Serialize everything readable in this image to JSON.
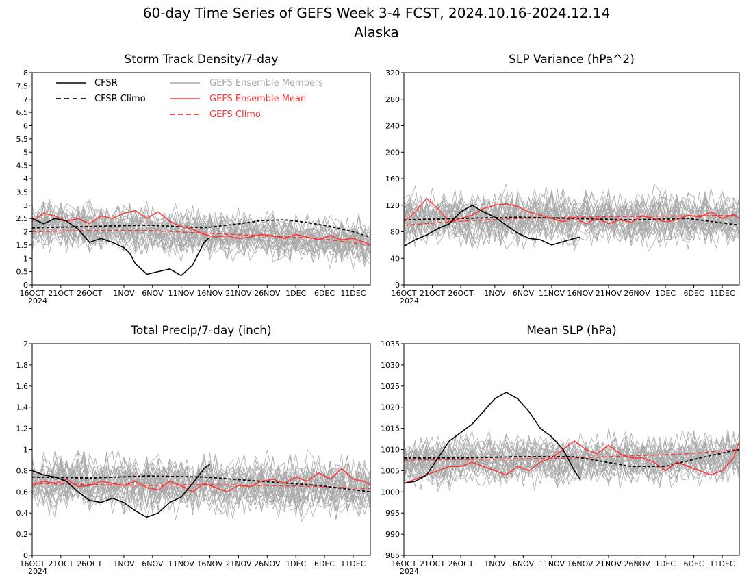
{
  "figure": {
    "title_line1": "60-day Time Series of GEFS Week 3-4 FCST, 2024.10.16-2024.12.14",
    "title_line2": "Alaska"
  },
  "legend": {
    "items": [
      {
        "label": "CFSR",
        "color": "#000000",
        "style": "solid"
      },
      {
        "label": "CFSR Climo",
        "color": "#000000",
        "style": "dashed"
      },
      {
        "label": "GEFS Ensemble Members",
        "color": "#aaaaaa",
        "style": "solid"
      },
      {
        "label": "GEFS Ensemble Mean",
        "color": "#ff3333",
        "style": "solid"
      },
      {
        "label": "GEFS Climo",
        "color": "#ff3333",
        "style": "dashed"
      }
    ]
  },
  "colors": {
    "cfsr": "#000000",
    "members": "#aaaaaa",
    "mean": "#ff3333",
    "climo_red": "#ff3333"
  },
  "x_axis": {
    "ticks": [
      {
        "day": 0,
        "label": "16OCT"
      },
      {
        "day": 5,
        "label": "21OCT"
      },
      {
        "day": 10,
        "label": "26OCT"
      },
      {
        "day": 16,
        "label": "1NOV"
      },
      {
        "day": 21,
        "label": "6NOV"
      },
      {
        "day": 26,
        "label": "11NOV"
      },
      {
        "day": 31,
        "label": "16NOV"
      },
      {
        "day": 36,
        "label": "21NOV"
      },
      {
        "day": 41,
        "label": "26NOV"
      },
      {
        "day": 46,
        "label": "1DEC"
      },
      {
        "day": 51,
        "label": "6DEC"
      },
      {
        "day": 56,
        "label": "11DEC"
      }
    ],
    "year_label": "2024",
    "range": [
      0,
      59
    ]
  },
  "chart_data": [
    {
      "type": "line",
      "title": "Storm Track Density/7-day",
      "ylim": [
        0,
        8
      ],
      "yticks": [
        "0",
        "0.5",
        "1",
        "1.5",
        "2",
        "2.5",
        "3",
        "3.5",
        "4",
        "4.5",
        "5",
        "5.5",
        "6",
        "6.5",
        "7",
        "7.5",
        "8"
      ],
      "ens_base": 2.3,
      "ens_slope": -0.012,
      "ens_spread": 0.9,
      "ens_members": 30,
      "series": [
        {
          "name": "CFSR",
          "x": [
            0,
            2,
            4,
            6,
            8,
            10,
            12,
            14,
            16,
            17,
            18,
            20,
            22,
            24,
            26,
            28,
            30,
            31
          ],
          "y": [
            2.5,
            2.3,
            2.5,
            2.4,
            2.1,
            1.6,
            1.75,
            1.6,
            1.4,
            1.2,
            0.8,
            0.4,
            0.5,
            0.6,
            0.35,
            0.75,
            1.6,
            1.8
          ]
        },
        {
          "name": "CFSR Climo",
          "x": [
            0,
            10,
            20,
            30,
            36,
            40,
            44,
            48,
            52,
            56,
            59
          ],
          "y": [
            2.15,
            2.2,
            2.25,
            2.15,
            2.3,
            2.42,
            2.45,
            2.35,
            2.2,
            2.0,
            1.8
          ]
        },
        {
          "name": "GEFS Ensemble Mean",
          "x": [
            0,
            2,
            4,
            6,
            8,
            10,
            12,
            14,
            16,
            18,
            20,
            22,
            24,
            26,
            28,
            30,
            32,
            34,
            36,
            38,
            40,
            42,
            44,
            46,
            48,
            50,
            52,
            54,
            56,
            58,
            59
          ],
          "y": [
            2.4,
            2.7,
            2.6,
            2.4,
            2.5,
            2.3,
            2.6,
            2.5,
            2.7,
            2.8,
            2.5,
            2.75,
            2.4,
            2.2,
            2.1,
            1.9,
            1.8,
            1.85,
            1.75,
            1.8,
            1.9,
            1.85,
            1.75,
            1.9,
            1.8,
            1.7,
            1.85,
            1.7,
            1.75,
            1.6,
            1.5
          ]
        },
        {
          "name": "GEFS Climo",
          "x": [
            0,
            10,
            20,
            30,
            40,
            50,
            59
          ],
          "y": [
            2.0,
            2.05,
            2.05,
            1.95,
            1.85,
            1.75,
            1.5
          ]
        }
      ]
    },
    {
      "type": "line",
      "title": "SLP Variance (hPa^2)",
      "ylim": [
        0,
        320
      ],
      "yticks": [
        "0",
        "40",
        "80",
        "120",
        "160",
        "200",
        "240",
        "280",
        "320"
      ],
      "ens_base": 100,
      "ens_slope": 0,
      "ens_spread": 42,
      "ens_members": 30,
      "series": [
        {
          "name": "CFSR",
          "x": [
            0,
            2,
            4,
            6,
            8,
            10,
            12,
            14,
            16,
            18,
            20,
            22,
            24,
            26,
            28,
            30,
            31
          ],
          "y": [
            58,
            68,
            75,
            85,
            92,
            110,
            120,
            110,
            102,
            90,
            78,
            70,
            68,
            60,
            65,
            70,
            72
          ]
        },
        {
          "name": "CFSR Climo",
          "x": [
            0,
            10,
            20,
            30,
            40,
            50,
            59
          ],
          "y": [
            98,
            100,
            102,
            100,
            98,
            100,
            90
          ]
        },
        {
          "name": "GEFS Ensemble Mean",
          "x": [
            0,
            2,
            4,
            6,
            8,
            10,
            12,
            14,
            16,
            18,
            20,
            22,
            24,
            26,
            28,
            30,
            32,
            34,
            36,
            38,
            40,
            42,
            44,
            46,
            48,
            50,
            52,
            54,
            56,
            58,
            59
          ],
          "y": [
            95,
            110,
            130,
            115,
            95,
            100,
            105,
            115,
            120,
            122,
            118,
            110,
            105,
            100,
            95,
            102,
            92,
            100,
            92,
            98,
            94,
            104,
            100,
            95,
            98,
            105,
            102,
            110,
            100,
            106,
            100
          ]
        },
        {
          "name": "GEFS Climo",
          "x": [
            0,
            10,
            20,
            30,
            40,
            50,
            59
          ],
          "y": [
            90,
            96,
            100,
            102,
            103,
            104,
            105
          ]
        }
      ]
    },
    {
      "type": "line",
      "title": "Total Precip/7-day (inch)",
      "ylim": [
        0,
        2
      ],
      "yticks": [
        "0",
        "0.2",
        "0.4",
        "0.6",
        "0.8",
        "1",
        "1.2",
        "1.4",
        "1.6",
        "1.8",
        "2"
      ],
      "ens_base": 0.7,
      "ens_slope": -0.001,
      "ens_spread": 0.28,
      "ens_members": 30,
      "series": [
        {
          "name": "CFSR",
          "x": [
            0,
            2,
            4,
            6,
            8,
            10,
            12,
            14,
            16,
            18,
            20,
            22,
            24,
            26,
            28,
            30,
            31
          ],
          "y": [
            0.8,
            0.76,
            0.74,
            0.7,
            0.6,
            0.52,
            0.5,
            0.54,
            0.5,
            0.42,
            0.36,
            0.4,
            0.5,
            0.55,
            0.68,
            0.82,
            0.86
          ]
        },
        {
          "name": "CFSR Climo",
          "x": [
            0,
            10,
            20,
            30,
            40,
            50,
            59
          ],
          "y": [
            0.74,
            0.73,
            0.75,
            0.74,
            0.7,
            0.66,
            0.6
          ]
        },
        {
          "name": "GEFS Ensemble Mean",
          "x": [
            0,
            2,
            4,
            6,
            8,
            10,
            12,
            14,
            16,
            18,
            20,
            22,
            24,
            26,
            28,
            30,
            32,
            34,
            36,
            38,
            40,
            42,
            44,
            46,
            48,
            50,
            52,
            54,
            56,
            58,
            59
          ],
          "y": [
            0.66,
            0.7,
            0.68,
            0.72,
            0.65,
            0.66,
            0.7,
            0.68,
            0.66,
            0.7,
            0.64,
            0.62,
            0.7,
            0.66,
            0.6,
            0.68,
            0.64,
            0.6,
            0.66,
            0.65,
            0.7,
            0.72,
            0.68,
            0.74,
            0.7,
            0.78,
            0.72,
            0.82,
            0.72,
            0.7,
            0.66
          ]
        },
        {
          "name": "GEFS Climo",
          "x": [
            0,
            10,
            20,
            30,
            40,
            50,
            59
          ],
          "y": [
            0.68,
            0.67,
            0.66,
            0.67,
            0.66,
            0.65,
            0.63
          ]
        }
      ]
    },
    {
      "type": "line",
      "title": "Mean SLP (hPa)",
      "ylim": [
        985,
        1035
      ],
      "yticks": [
        "985",
        "990",
        "995",
        "1000",
        "1005",
        "1010",
        "1015",
        "1020",
        "1025",
        "1030",
        "1035"
      ],
      "ens_base": 1007,
      "ens_slope": 0.02,
      "ens_spread": 6,
      "ens_members": 30,
      "series": [
        {
          "name": "CFSR",
          "x": [
            0,
            2,
            4,
            6,
            8,
            10,
            12,
            14,
            16,
            18,
            20,
            22,
            24,
            26,
            28,
            30,
            31
          ],
          "y": [
            1002,
            1002.5,
            1004,
            1008,
            1012,
            1014,
            1016,
            1019,
            1022,
            1023.5,
            1022,
            1019,
            1015,
            1013,
            1010,
            1005,
            1003
          ]
        },
        {
          "name": "CFSR Climo",
          "x": [
            0,
            10,
            20,
            30,
            40,
            46,
            52,
            59
          ],
          "y": [
            1008,
            1008,
            1008.3,
            1008.3,
            1006,
            1006,
            1008,
            1010
          ]
        },
        {
          "name": "GEFS Ensemble Mean",
          "x": [
            0,
            2,
            4,
            6,
            8,
            10,
            12,
            14,
            16,
            18,
            20,
            22,
            24,
            26,
            28,
            30,
            32,
            34,
            36,
            38,
            40,
            42,
            44,
            46,
            48,
            50,
            52,
            54,
            56,
            58,
            59
          ],
          "y": [
            1002,
            1003,
            1004,
            1005,
            1006,
            1006,
            1007,
            1006,
            1005,
            1004,
            1006,
            1005,
            1007,
            1008,
            1010,
            1012,
            1010,
            1009,
            1011,
            1009,
            1008,
            1008,
            1007,
            1005,
            1007,
            1006,
            1005,
            1004,
            1005,
            1008,
            1012
          ]
        },
        {
          "name": "GEFS Climo",
          "x": [
            0,
            10,
            20,
            30,
            40,
            50,
            59
          ],
          "y": [
            1007.5,
            1007.6,
            1007.8,
            1008,
            1008.5,
            1009,
            1010
          ]
        }
      ]
    }
  ]
}
